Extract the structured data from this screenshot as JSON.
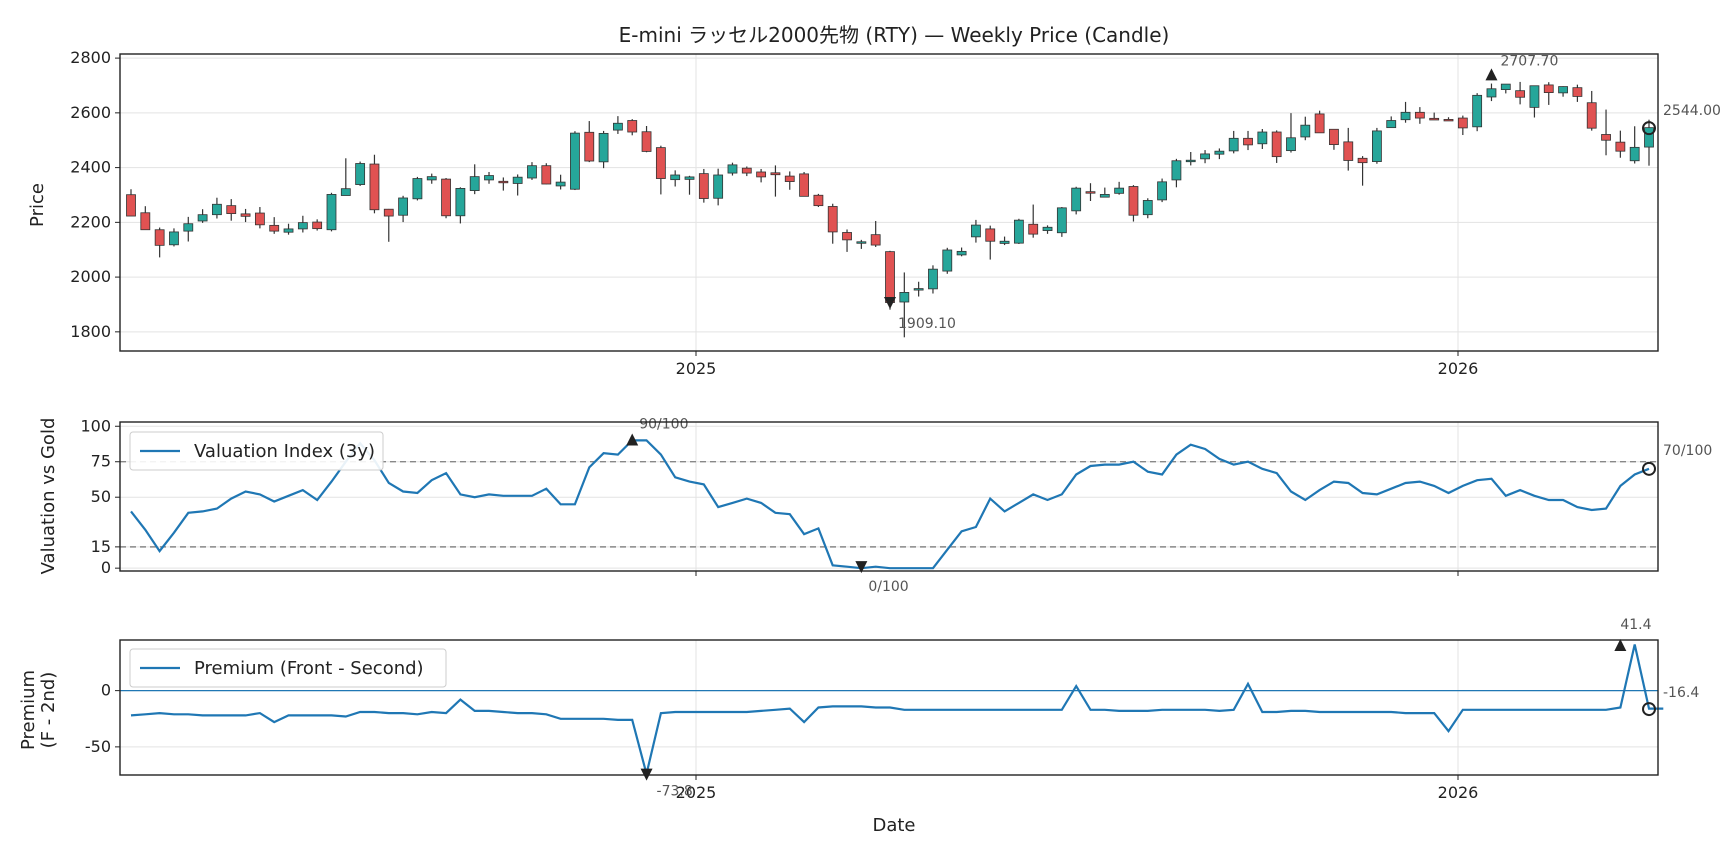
{
  "title": "E-mini ラッセル2000先物 (RTY) — Weekly Price (Candle)",
  "chart_data": [
    {
      "type": "candlestick",
      "title": "E-mini ラッセル2000先物 (RTY) — Weekly Price (Candle)",
      "ylabel": "Price",
      "ylim": [
        1730,
        2815
      ],
      "yticks": [
        1800,
        2000,
        2200,
        2400,
        2600,
        2800
      ],
      "xticks": [
        "2025",
        "2026"
      ],
      "grid": true,
      "colors": {
        "up": "#26a69a",
        "down": "#e05252",
        "wick": "#333333"
      },
      "candles": [
        [
          2301,
          2223,
          2225,
          2321
        ],
        [
          2235,
          2173,
          2172,
          2259
        ],
        [
          2173,
          2116,
          2072,
          2181
        ],
        [
          2118,
          2165,
          2112,
          2178
        ],
        [
          2168,
          2195,
          2130,
          2220
        ],
        [
          2205,
          2228,
          2198,
          2248
        ],
        [
          2228,
          2266,
          2214,
          2290
        ],
        [
          2261,
          2232,
          2206,
          2285
        ],
        [
          2231,
          2222,
          2201,
          2249
        ],
        [
          2234,
          2191,
          2178,
          2256
        ],
        [
          2189,
          2168,
          2158,
          2219
        ],
        [
          2164,
          2176,
          2155,
          2195
        ],
        [
          2176,
          2199,
          2163,
          2224
        ],
        [
          2201,
          2177,
          2170,
          2211
        ],
        [
          2173,
          2302,
          2167,
          2308
        ],
        [
          2298,
          2323,
          2302,
          2434
        ],
        [
          2338,
          2415,
          2333,
          2422
        ],
        [
          2413,
          2246,
          2233,
          2447
        ],
        [
          2248,
          2223,
          2129,
          2249
        ],
        [
          2226,
          2289,
          2201,
          2297
        ],
        [
          2286,
          2360,
          2280,
          2366
        ],
        [
          2355,
          2367,
          2341,
          2378
        ],
        [
          2358,
          2224,
          2215,
          2362
        ],
        [
          2224,
          2324,
          2196,
          2328
        ],
        [
          2316,
          2367,
          2303,
          2412
        ],
        [
          2355,
          2371,
          2341,
          2384
        ],
        [
          2350,
          2347,
          2316,
          2364
        ],
        [
          2342,
          2365,
          2298,
          2375
        ],
        [
          2362,
          2407,
          2355,
          2420
        ],
        [
          2407,
          2340,
          2339,
          2416
        ],
        [
          2333,
          2347,
          2320,
          2374
        ],
        [
          2321,
          2526,
          2318,
          2533
        ],
        [
          2529,
          2424,
          2420,
          2570
        ],
        [
          2421,
          2525,
          2398,
          2534
        ],
        [
          2537,
          2562,
          2523,
          2588
        ],
        [
          2572,
          2530,
          2518,
          2577
        ],
        [
          2531,
          2459,
          2456,
          2552
        ],
        [
          2473,
          2360,
          2302,
          2480
        ],
        [
          2356,
          2373,
          2331,
          2390
        ],
        [
          2357,
          2366,
          2301,
          2370
        ],
        [
          2378,
          2287,
          2272,
          2395
        ],
        [
          2288,
          2373,
          2262,
          2396
        ],
        [
          2380,
          2410,
          2371,
          2418
        ],
        [
          2398,
          2380,
          2369,
          2404
        ],
        [
          2384,
          2366,
          2346,
          2395
        ],
        [
          2381,
          2374,
          2294,
          2408
        ],
        [
          2369,
          2349,
          2319,
          2386
        ],
        [
          2377,
          2295,
          2298,
          2384
        ],
        [
          2299,
          2261,
          2256,
          2304
        ],
        [
          2258,
          2165,
          2122,
          2268
        ],
        [
          2163,
          2136,
          2092,
          2174
        ],
        [
          2129,
          2129,
          2103,
          2136
        ],
        [
          2155,
          2117,
          2110,
          2205
        ],
        [
          2093,
          1907,
          1881,
          2096
        ],
        [
          1909,
          1944,
          1780,
          2017
        ],
        [
          1953,
          1958,
          1929,
          1983
        ],
        [
          1957,
          2029,
          1940,
          2043
        ],
        [
          2022,
          2099,
          2012,
          2107
        ],
        [
          2081,
          2094,
          2076,
          2108
        ],
        [
          2147,
          2190,
          2126,
          2209
        ],
        [
          2176,
          2131,
          2064,
          2188
        ],
        [
          2123,
          2131,
          2117,
          2148
        ],
        [
          2124,
          2208,
          2121,
          2213
        ],
        [
          2193,
          2157,
          2144,
          2265
        ],
        [
          2170,
          2182,
          2158,
          2189
        ],
        [
          2162,
          2253,
          2147,
          2256
        ],
        [
          2242,
          2325,
          2229,
          2330
        ],
        [
          2312,
          2311,
          2278,
          2343
        ],
        [
          2292,
          2302,
          2291,
          2327
        ],
        [
          2306,
          2325,
          2301,
          2348
        ],
        [
          2331,
          2226,
          2203,
          2336
        ],
        [
          2228,
          2280,
          2215,
          2288
        ],
        [
          2282,
          2348,
          2274,
          2360
        ],
        [
          2355,
          2425,
          2328,
          2432
        ],
        [
          2423,
          2427,
          2408,
          2457
        ],
        [
          2432,
          2450,
          2416,
          2464
        ],
        [
          2449,
          2460,
          2431,
          2470
        ],
        [
          2461,
          2507,
          2452,
          2534
        ],
        [
          2507,
          2483,
          2464,
          2534
        ],
        [
          2487,
          2530,
          2468,
          2541
        ],
        [
          2530,
          2440,
          2417,
          2536
        ],
        [
          2462,
          2509,
          2455,
          2599
        ],
        [
          2512,
          2555,
          2500,
          2586
        ],
        [
          2596,
          2527,
          2533,
          2608
        ],
        [
          2540,
          2484,
          2465,
          2541
        ],
        [
          2494,
          2426,
          2389,
          2545
        ],
        [
          2434,
          2418,
          2334,
          2442
        ],
        [
          2422,
          2534,
          2414,
          2545
        ],
        [
          2546,
          2572,
          2547,
          2587
        ],
        [
          2575,
          2602,
          2564,
          2640
        ],
        [
          2602,
          2581,
          2560,
          2621
        ],
        [
          2580,
          2574,
          2576,
          2601
        ],
        [
          2576,
          2575,
          2576,
          2584
        ],
        [
          2581,
          2545,
          2519,
          2590
        ],
        [
          2549,
          2664,
          2533,
          2672
        ],
        [
          2658,
          2688,
          2643,
          2707
        ],
        [
          2685,
          2705,
          2671,
          2702
        ],
        [
          2681,
          2657,
          2631,
          2713
        ],
        [
          2620,
          2699,
          2583,
          2699
        ],
        [
          2702,
          2674,
          2629,
          2712
        ],
        [
          2673,
          2696,
          2659,
          2697
        ],
        [
          2692,
          2660,
          2640,
          2703
        ],
        [
          2637,
          2544,
          2535,
          2680
        ],
        [
          2521,
          2500,
          2445,
          2612
        ],
        [
          2493,
          2460,
          2436,
          2535
        ],
        [
          2425,
          2474,
          2415,
          2551
        ],
        [
          2475,
          2546,
          2407,
          2575
        ]
      ],
      "annotations": {
        "max_label": "2707.70",
        "min_label": "1909.10",
        "last_label": "2544.00"
      }
    },
    {
      "type": "line",
      "ylabel": "Valuation vs Gold",
      "ylim": [
        -2,
        103
      ],
      "yticks": [
        0,
        15,
        50,
        75,
        100
      ],
      "hlines": [
        15,
        75
      ],
      "series": [
        {
          "name": "Valuation Index (3y)",
          "color": "#1f77b4",
          "values": [
            40,
            27,
            12,
            25,
            39,
            40,
            42,
            49,
            54,
            52,
            47,
            51,
            55,
            48,
            61,
            75,
            88,
            76,
            60,
            54,
            53,
            62,
            67,
            52,
            50,
            52,
            51,
            51,
            51,
            56,
            45,
            45,
            71,
            81,
            80,
            90,
            90,
            80,
            64,
            61,
            59,
            43,
            46,
            49,
            46,
            39,
            38,
            24,
            28,
            2,
            1,
            0,
            1,
            0,
            0,
            0,
            0,
            13,
            26,
            29,
            49,
            40,
            46,
            52,
            48,
            52,
            66,
            72,
            73,
            73,
            75,
            68,
            66,
            80,
            87,
            84,
            77,
            73,
            75,
            70,
            67,
            54,
            48,
            55,
            61,
            60,
            53,
            52,
            56,
            60,
            61,
            58,
            53,
            58,
            62,
            63,
            51,
            55,
            51,
            48,
            48,
            43,
            41,
            42,
            58,
            66,
            70
          ]
        }
      ],
      "annotations": {
        "max_label": "90/100",
        "min_label": "0/100",
        "last_label": "70/100"
      }
    },
    {
      "type": "line",
      "ylabel": "Premium (F - 2nd)",
      "xlabel": "Date",
      "ylim": [
        -75,
        45
      ],
      "yticks": [
        -50,
        0
      ],
      "hlines": [
        0
      ],
      "xticks": [
        "2025",
        "2026"
      ],
      "series": [
        {
          "name": "Premium (Front - Second)",
          "color": "#1f77b4",
          "values": [
            -22,
            -21,
            -20,
            -21,
            -21,
            -22,
            -22,
            -22,
            -22,
            -20,
            -28,
            -22,
            -22,
            -22,
            -22,
            -23,
            -19,
            -19,
            -20,
            -20,
            -21,
            -19,
            -20,
            -8,
            -18,
            -18,
            -19,
            -20,
            -20,
            -21,
            -25,
            -25,
            -25,
            -25,
            -26,
            -26,
            -74,
            -20,
            -19,
            -19,
            -19,
            -19,
            -19,
            -19,
            -18,
            -17,
            -16,
            -28,
            -15,
            -14,
            -14,
            -14,
            -15,
            -15,
            -17,
            -17,
            -17,
            -17,
            -17,
            -17,
            -17,
            -17,
            -17,
            -17,
            -17,
            -17,
            4,
            -17,
            -17,
            -18,
            -18,
            -18,
            -17,
            -17,
            -17,
            -17,
            -18,
            -17,
            6,
            -19,
            -19,
            -18,
            -18,
            -19,
            -19,
            -19,
            -19,
            -19,
            -19,
            -20,
            -20,
            -20,
            -36,
            -17,
            -17,
            -17,
            -17,
            -17,
            -17,
            -17,
            -17,
            -17,
            -17,
            -17,
            -15,
            41,
            -16,
            -16
          ]
        }
      ],
      "annotations": {
        "max_label": "41.4",
        "min_label": "-73.8",
        "last_label": "-16.4"
      }
    }
  ]
}
